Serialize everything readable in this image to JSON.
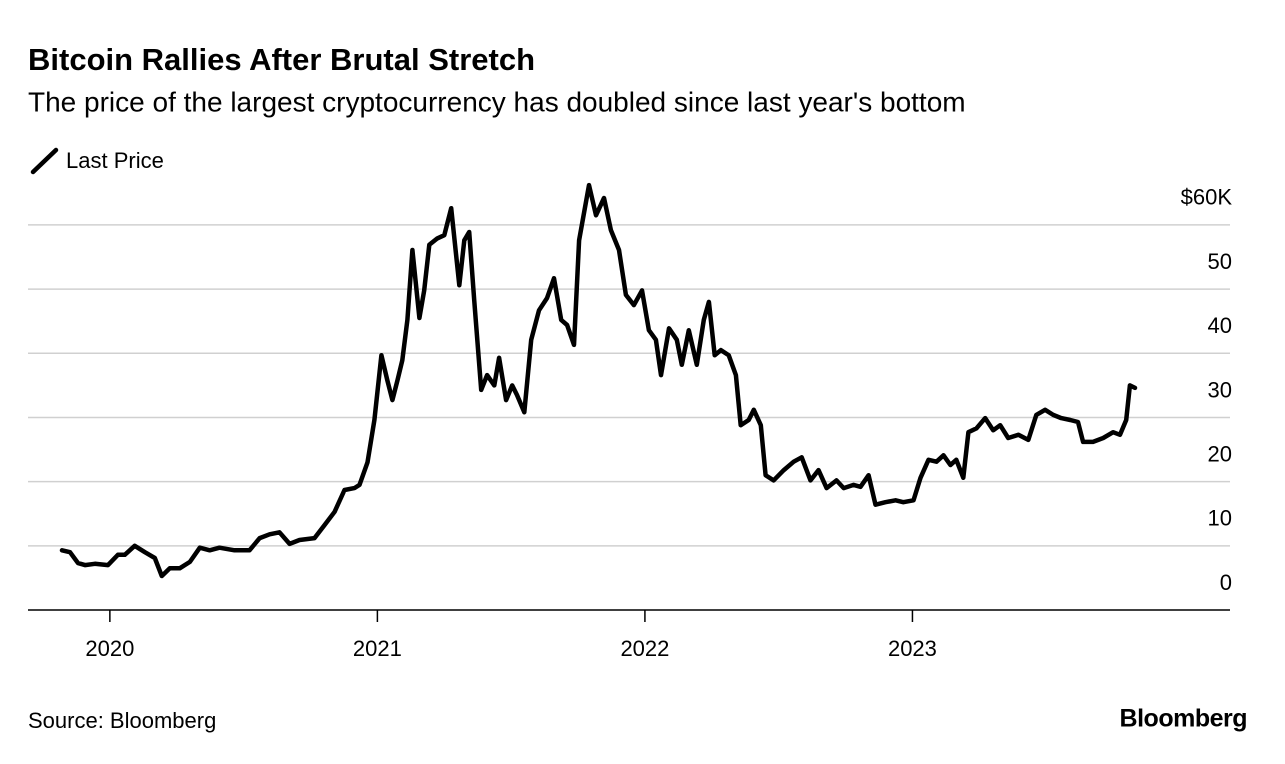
{
  "chart_data": {
    "type": "line",
    "title": "Bitcoin Rallies After Brutal Stretch",
    "subtitle": "The price of the largest cryptocurrency has doubled since last year's bottom",
    "source": "Source: Bloomberg",
    "brand": "Bloomberg",
    "legend": "top-left",
    "grid": true,
    "xlim": [
      2019.694,
      2024.187
    ],
    "xticks": [
      2020,
      2021,
      2022,
      2023
    ],
    "ylim": [
      0,
      67000
    ],
    "yticks": [
      {
        "value": 60000,
        "label": "$60K"
      },
      {
        "value": 50000,
        "label": "50"
      },
      {
        "value": 40000,
        "label": "40"
      },
      {
        "value": 30000,
        "label": "30"
      },
      {
        "value": 20000,
        "label": "20"
      },
      {
        "value": 10000,
        "label": "10"
      },
      0
    ],
    "x": [
      2019.821,
      2019.851,
      2019.881,
      2019.907,
      2019.944,
      2019.993,
      2020.03,
      2020.056,
      2020.093,
      2020.131,
      2020.168,
      2020.194,
      2020.224,
      2020.261,
      2020.299,
      2020.336,
      2020.373,
      2020.41,
      2020.466,
      2020.522,
      2020.56,
      2020.597,
      2020.634,
      2020.672,
      2020.709,
      2020.765,
      2020.802,
      2020.84,
      2020.877,
      2020.914,
      2020.933,
      2020.963,
      2020.989,
      2021.015,
      2021.037,
      2021.056,
      2021.075,
      2021.093,
      2021.112,
      2021.131,
      2021.157,
      2021.175,
      2021.194,
      2021.224,
      2021.25,
      2021.276,
      2021.306,
      2021.325,
      2021.343,
      2021.362,
      2021.388,
      2021.41,
      2021.437,
      2021.455,
      2021.481,
      2021.504,
      2021.522,
      2021.549,
      2021.575,
      2021.604,
      2021.634,
      2021.66,
      2021.687,
      2021.709,
      2021.735,
      2021.754,
      2021.791,
      2021.817,
      2021.847,
      2021.873,
      2021.903,
      2021.929,
      2021.959,
      2021.989,
      2022.015,
      2022.041,
      2022.06,
      2022.09,
      2022.119,
      2022.138,
      2022.164,
      2022.194,
      2022.22,
      2022.239,
      2022.261,
      2022.284,
      2022.313,
      2022.34,
      2022.358,
      2022.388,
      2022.407,
      2022.433,
      2022.451,
      2022.481,
      2022.519,
      2022.556,
      2022.586,
      2022.619,
      2022.649,
      2022.679,
      2022.716,
      2022.743,
      2022.78,
      2022.806,
      2022.836,
      2022.862,
      2022.899,
      2022.937,
      2022.966,
      2023.004,
      2023.03,
      2023.06,
      2023.09,
      2023.116,
      2023.142,
      2023.164,
      2023.19,
      2023.209,
      2023.239,
      2023.272,
      2023.302,
      2023.328,
      2023.358,
      2023.396,
      2023.433,
      2023.463,
      2023.496,
      2023.526,
      2023.556,
      2023.59,
      2023.619,
      2023.638,
      2023.675,
      2023.713,
      2023.75,
      2023.776,
      2023.799,
      2023.813,
      2023.832
    ],
    "series": [
      {
        "name": "Last Price",
        "color": "#000000",
        "values": [
          9300,
          9000,
          7300,
          7000,
          7200,
          7000,
          8600,
          8600,
          10000,
          9000,
          8100,
          5300,
          6500,
          6500,
          7500,
          9700,
          9300,
          9700,
          9300,
          9300,
          11200,
          11800,
          12100,
          10300,
          10900,
          11200,
          13200,
          15300,
          18700,
          19000,
          19500,
          23000,
          29600,
          39700,
          35800,
          32700,
          35800,
          38900,
          45200,
          56100,
          45500,
          49800,
          56900,
          57900,
          58400,
          62600,
          50600,
          57600,
          58900,
          48300,
          34300,
          36600,
          35000,
          39300,
          32700,
          35000,
          33500,
          30800,
          42100,
          46700,
          48600,
          51700,
          45200,
          44400,
          41300,
          57600,
          66200,
          61500,
          64200,
          59200,
          56100,
          49100,
          47500,
          49800,
          43600,
          42100,
          36600,
          43900,
          42100,
          38200,
          43600,
          38200,
          45200,
          48000,
          39700,
          40500,
          39700,
          36600,
          28800,
          29600,
          31200,
          28800,
          21000,
          20200,
          21800,
          23100,
          23800,
          20200,
          21800,
          19000,
          20200,
          19000,
          19500,
          19200,
          21000,
          16400,
          16800,
          17100,
          16800,
          17100,
          20600,
          23400,
          23100,
          24100,
          22600,
          23400,
          20600,
          27700,
          28300,
          29900,
          28000,
          28800,
          26800,
          27300,
          26500,
          30400,
          31200,
          30400,
          29900,
          29600,
          29300,
          26200,
          26200,
          26800,
          27700,
          27300,
          29600,
          35000,
          34600
        ]
      }
    ]
  }
}
